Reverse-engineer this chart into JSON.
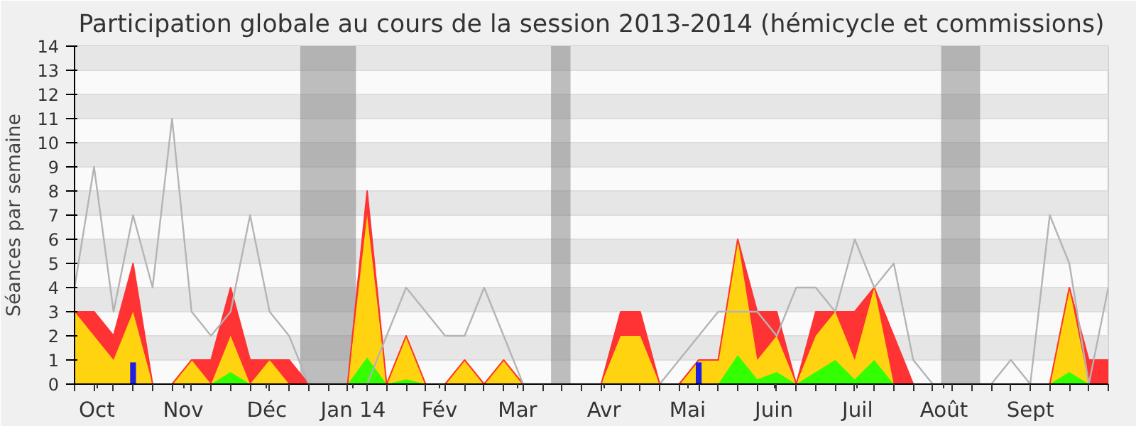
{
  "chart_data": {
    "type": "area",
    "stacked": true,
    "title": "Participation globale au cours de la session 2013-2014 (hémicycle et commissions)",
    "ylabel": "Séances par semaine",
    "x": [
      "2013-09-23",
      "2013-09-30",
      "2013-10-07",
      "2013-10-14",
      "2013-10-21",
      "2013-10-28",
      "2013-11-04",
      "2013-11-11",
      "2013-11-18",
      "2013-11-25",
      "2013-12-02",
      "2013-12-09",
      "2013-12-16",
      "2013-12-23",
      "2013-12-30",
      "2014-01-06",
      "2014-01-13",
      "2014-01-20",
      "2014-01-27",
      "2014-02-03",
      "2014-02-10",
      "2014-02-17",
      "2014-02-24",
      "2014-03-03",
      "2014-03-10",
      "2014-03-17",
      "2014-03-24",
      "2014-03-31",
      "2014-04-07",
      "2014-04-14",
      "2014-04-21",
      "2014-04-28",
      "2014-05-05",
      "2014-05-12",
      "2014-05-19",
      "2014-05-26",
      "2014-06-02",
      "2014-06-09",
      "2014-06-16",
      "2014-06-23",
      "2014-06-30",
      "2014-07-07",
      "2014-07-14",
      "2014-07-21",
      "2014-07-28",
      "2014-08-04",
      "2014-08-11",
      "2014-08-18",
      "2014-08-25",
      "2014-09-01",
      "2014-09-08",
      "2014-09-15",
      "2014-09-22",
      "2014-09-29"
    ],
    "xlim": [
      "2013-09-23",
      "2014-09-29"
    ],
    "xticks": [
      {
        "value": "2013-10-01",
        "label": "Oct"
      },
      {
        "value": "2013-11-01",
        "label": "Nov"
      },
      {
        "value": "2013-12-01",
        "label": "Déc"
      },
      {
        "value": "2014-01-01",
        "label": "Jan 14"
      },
      {
        "value": "2014-02-01",
        "label": "Fév"
      },
      {
        "value": "2014-03-01",
        "label": "Mar"
      },
      {
        "value": "2014-04-01",
        "label": "Avr"
      },
      {
        "value": "2014-05-01",
        "label": "Mai"
      },
      {
        "value": "2014-06-01",
        "label": "Juin"
      },
      {
        "value": "2014-07-01",
        "label": "Juil"
      },
      {
        "value": "2014-08-01",
        "label": "Août"
      },
      {
        "value": "2014-09-01",
        "label": "Sept"
      }
    ],
    "ylim": [
      0,
      14
    ],
    "yticks": [
      0,
      1,
      2,
      3,
      4,
      5,
      6,
      7,
      8,
      9,
      10,
      11,
      12,
      13,
      14
    ],
    "grid": "y",
    "series": [
      {
        "color": "#33ff00",
        "values": [
          0,
          0,
          0,
          0,
          0,
          0,
          0,
          0,
          0.5,
          0,
          0,
          0,
          0,
          0,
          0,
          1.1,
          0,
          0.2,
          0,
          0,
          0,
          0,
          0,
          0,
          0,
          0,
          0,
          0,
          0,
          0,
          0,
          0,
          0,
          0,
          1.2,
          0.2,
          0.5,
          0,
          0.5,
          1,
          0.2,
          1,
          0,
          0,
          0,
          0,
          0,
          0,
          0,
          0,
          0,
          0.5,
          0,
          0
        ]
      },
      {
        "color": "#ffd30f",
        "values": [
          3,
          2,
          1,
          3,
          0,
          0,
          1,
          0,
          1.5,
          0,
          1,
          0,
          0,
          0,
          0,
          5.9,
          0,
          1.8,
          0,
          0,
          1,
          0,
          1,
          0,
          0,
          0,
          0,
          0,
          2,
          2,
          0,
          0,
          1,
          1,
          4.8,
          0.8,
          1.5,
          0,
          1.5,
          2,
          0.8,
          3,
          0,
          0,
          0,
          0,
          0,
          0,
          0,
          0,
          0,
          3.5,
          0,
          0
        ]
      },
      {
        "color": "#ff3333",
        "values": [
          0,
          1,
          1,
          2,
          0,
          0,
          0,
          1,
          2,
          1,
          0,
          1,
          0,
          0,
          0,
          1,
          0,
          0,
          0,
          0,
          0,
          0,
          0,
          0,
          0,
          0,
          0,
          0,
          1,
          1,
          0,
          0,
          0,
          0,
          0,
          2,
          1,
          0,
          1,
          0,
          2,
          0,
          2,
          0,
          0,
          0,
          0,
          0,
          0,
          0,
          0,
          0,
          1,
          1
        ]
      },
      {
        "type": "bar",
        "color": "#2020e0",
        "values": [
          null,
          null,
          null,
          0.9,
          null,
          null,
          null,
          null,
          null,
          null,
          null,
          null,
          null,
          null,
          null,
          null,
          null,
          null,
          null,
          null,
          null,
          null,
          null,
          null,
          null,
          null,
          null,
          null,
          null,
          null,
          null,
          null,
          0.9,
          null,
          null,
          null,
          null,
          null,
          null,
          null,
          null,
          null,
          null,
          null,
          null,
          null,
          null,
          null,
          null,
          null,
          null,
          null,
          null,
          null
        ]
      },
      {
        "type": "line",
        "color": "#b4b4b4",
        "values": [
          4,
          9,
          3,
          7,
          4,
          11,
          3,
          2,
          3,
          7,
          3,
          2,
          0,
          0,
          0,
          0,
          2,
          4,
          3,
          2,
          2,
          4,
          2,
          0,
          0,
          0,
          0,
          0,
          0,
          0,
          0,
          1,
          2,
          3,
          3,
          3,
          2,
          4,
          4,
          3,
          6,
          4,
          5,
          1,
          0,
          0,
          0,
          0,
          1,
          0,
          7,
          5,
          0,
          4
        ]
      }
    ],
    "bands": [
      {
        "axis": "x",
        "from": "2013-12-13",
        "to": "2014-01-02",
        "color": "#808080"
      },
      {
        "axis": "x",
        "from": "2014-03-13",
        "to": "2014-03-20",
        "color": "#808080"
      },
      {
        "axis": "x",
        "from": "2014-07-31",
        "to": "2014-08-14",
        "color": "#808080"
      }
    ]
  }
}
